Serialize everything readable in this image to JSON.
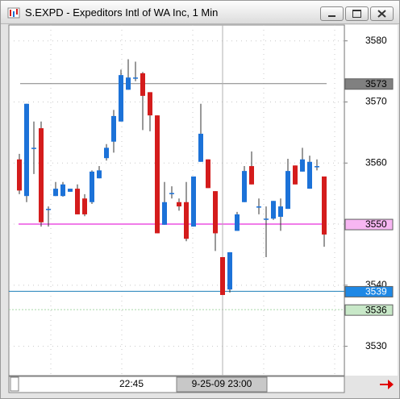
{
  "chart_data": {
    "type": "candlestick",
    "title": "S.EXPD - Expeditors Intl of WA Inc, 1 Min",
    "up_color": "#1c72d8",
    "down_color": "#d41c1c",
    "open": [
      3560.6,
      3554.6,
      3562.5,
      3565.7,
      3552.5,
      3554.6,
      3554.6,
      3555.3,
      3555.8,
      3554.2,
      3553.6,
      3557.5,
      3560.8,
      3563.5,
      3566.8,
      3572.0,
      3574.0,
      3574.7,
      3571.6,
      3567.8,
      3549.9,
      3554.9,
      3553.6,
      3553.6,
      3549.6,
      3560.2,
      3560.6,
      3555.4,
      3544.6,
      3539.3,
      3548.9,
      3553.6,
      3559.5,
      3552.9,
      3550.9,
      3550.9,
      3551.2,
      3552.5,
      3559.6,
      3558.6,
      3555.8,
      3559.5,
      3557.8
    ],
    "high": [
      3561.5,
      3569.7,
      3566.8,
      3566.8,
      3552.9,
      3556.9,
      3556.9,
      3555.8,
      3556.5,
      3554.9,
      3558.8,
      3559.5,
      3563.1,
      3568.7,
      3575.3,
      3577.0,
      3576.6,
      3574.9,
      3571.6,
      3567.8,
      3556.9,
      3556.2,
      3554.2,
      3556.9,
      3557.8,
      3569.7,
      3560.6,
      3555.4,
      3544.6,
      3545.4,
      3552.0,
      3559.5,
      3561.9,
      3554.2,
      3552.9,
      3553.8,
      3554.2,
      3560.7,
      3559.6,
      3562.5,
      3561.2,
      3560.6,
      3557.8
    ],
    "low": [
      3554.9,
      3553.6,
      3558.2,
      3549.6,
      3549.6,
      3554.6,
      3554.5,
      3555.3,
      3551.6,
      3551.3,
      3553.3,
      3557.5,
      3560.4,
      3561.7,
      3566.8,
      3572.0,
      3573.4,
      3565.4,
      3565.2,
      3548.5,
      3549.9,
      3554.2,
      3552.2,
      3547.2,
      3549.6,
      3560.2,
      3555.9,
      3545.6,
      3538.4,
      3538.8,
      3548.9,
      3553.6,
      3556.5,
      3551.6,
      3544.6,
      3550.7,
      3548.9,
      3552.5,
      3556.5,
      3558.6,
      3555.8,
      3558.8,
      3546.3
    ],
    "close": [
      3555.5,
      3569.7,
      3562.5,
      3550.3,
      3552.5,
      3555.8,
      3556.5,
      3555.8,
      3551.6,
      3551.6,
      3558.6,
      3558.8,
      3562.5,
      3567.7,
      3574.4,
      3574.0,
      3574.0,
      3571.0,
      3567.8,
      3548.5,
      3553.6,
      3555.1,
      3552.9,
      3547.6,
      3557.8,
      3564.8,
      3555.9,
      3548.5,
      3538.4,
      3545.4,
      3551.6,
      3558.7,
      3556.5,
      3552.9,
      3550.9,
      3553.8,
      3552.9,
      3558.7,
      3556.5,
      3560.6,
      3560.2,
      3559.5,
      3548.3
    ],
    "ylim": [
      3525.2,
      3582.6
    ],
    "yticks": [
      3530,
      3540,
      3550,
      3560,
      3570,
      3580
    ],
    "grid": true,
    "levels": [
      {
        "value": 3573,
        "color": "#808080",
        "label_bg": "#808080",
        "label_color": "#000000"
      },
      {
        "value": 3550,
        "color": "#f07ce8",
        "label_bg": "#f7b6f2",
        "label_color": "#000000"
      },
      {
        "value": 3539,
        "color": "#1e7fb8",
        "label_bg": "#1e88e5",
        "label_color": "#ffffff"
      },
      {
        "value": 3536,
        "color": "#a8d8a8",
        "label_bg": "#c8e8c8",
        "label_color": "#000000"
      }
    ],
    "x_labels": [
      "22:45",
      "9-25-09 23:00"
    ]
  }
}
